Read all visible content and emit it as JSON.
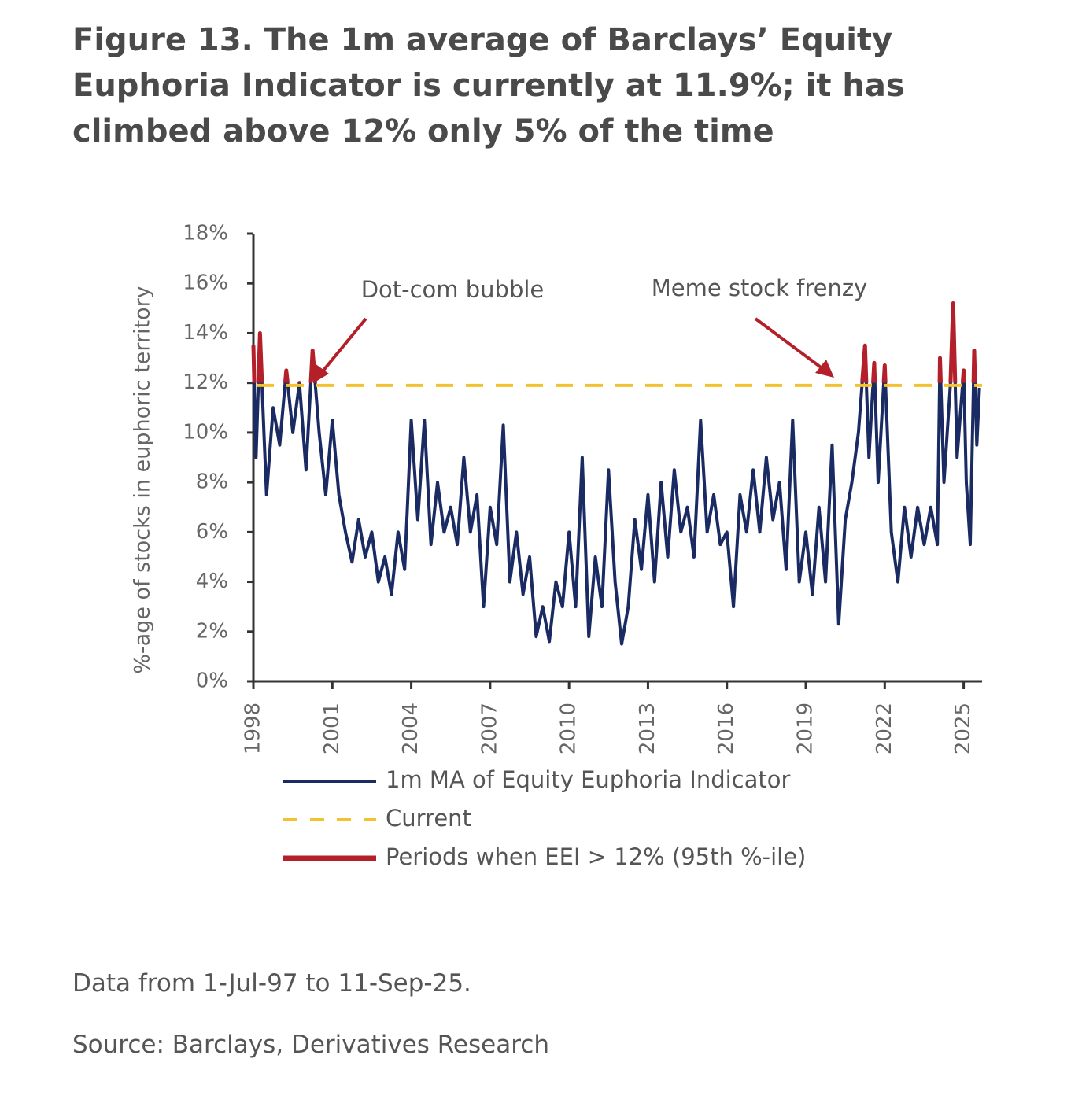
{
  "chart_data": {
    "type": "line",
    "title": "Figure 13. The 1m average of Barclays’ Equity Euphoria Indicator is currently at 11.9%; it has climbed above 12% only 5% of the time",
    "ylabel": "%-age of stocks in euphoric territory",
    "notes": [
      "Data from 1-Jul-97 to 11-Sep-25.",
      "Source: Barclays, Derivatives Research"
    ],
    "annotations": [
      "Dot-com bubble",
      "Meme stock frenzy"
    ],
    "xlim": [
      1998,
      2025.7
    ],
    "xticks": [
      1998,
      2001,
      2004,
      2007,
      2010,
      2013,
      2016,
      2019,
      2022,
      2025
    ],
    "ylim": [
      0,
      18
    ],
    "yticks": [
      {
        "value": 0,
        "label": "0%"
      },
      {
        "value": 2,
        "label": "2%"
      },
      {
        "value": 4,
        "label": "4%"
      },
      {
        "value": 6,
        "label": "6%"
      },
      {
        "value": 8,
        "label": "8%"
      },
      {
        "value": 10,
        "label": "10%"
      },
      {
        "value": 12,
        "label": "12%"
      },
      {
        "value": 14,
        "label": "14%"
      },
      {
        "value": 16,
        "label": "16%"
      },
      {
        "value": 18,
        "label": "18%"
      }
    ],
    "x": [
      1998.0,
      1998.1,
      1998.25,
      1998.4,
      1998.5,
      1998.75,
      1999.0,
      1999.25,
      1999.5,
      1999.75,
      2000.0,
      2000.25,
      2000.5,
      2000.75,
      2001.0,
      2001.25,
      2001.5,
      2001.75,
      2002.0,
      2002.25,
      2002.5,
      2002.75,
      2003.0,
      2003.25,
      2003.5,
      2003.75,
      2004.0,
      2004.25,
      2004.5,
      2004.75,
      2005.0,
      2005.25,
      2005.5,
      2005.75,
      2006.0,
      2006.25,
      2006.5,
      2006.75,
      2007.0,
      2007.25,
      2007.5,
      2007.75,
      2008.0,
      2008.25,
      2008.5,
      2008.75,
      2009.0,
      2009.25,
      2009.5,
      2009.75,
      2010.0,
      2010.25,
      2010.5,
      2010.75,
      2011.0,
      2011.25,
      2011.5,
      2011.75,
      2012.0,
      2012.25,
      2012.5,
      2012.75,
      2013.0,
      2013.25,
      2013.5,
      2013.75,
      2014.0,
      2014.25,
      2014.5,
      2014.75,
      2015.0,
      2015.25,
      2015.5,
      2015.75,
      2016.0,
      2016.25,
      2016.5,
      2016.75,
      2017.0,
      2017.25,
      2017.5,
      2017.75,
      2018.0,
      2018.25,
      2018.5,
      2018.75,
      2019.0,
      2019.25,
      2019.5,
      2019.75,
      2020.0,
      2020.25,
      2020.5,
      2020.75,
      2021.0,
      2021.25,
      2021.4,
      2021.6,
      2021.75,
      2022.0,
      2022.25,
      2022.5,
      2022.75,
      2023.0,
      2023.25,
      2023.5,
      2023.75,
      2024.0,
      2024.1,
      2024.25,
      2024.5,
      2024.6,
      2024.75,
      2025.0,
      2025.1,
      2025.25,
      2025.4,
      2025.5,
      2025.6
    ],
    "series": [
      {
        "name": "1m MA of Equity Euphoria Indicator",
        "color": "#1a2a63",
        "values": [
          13.5,
          9,
          14,
          10,
          7.5,
          11,
          9.5,
          12.5,
          10,
          12,
          8.5,
          13.3,
          10,
          7.5,
          10.5,
          7.5,
          6,
          4.8,
          6.5,
          5,
          6,
          4,
          5,
          3.5,
          6,
          4.5,
          10.5,
          6.5,
          10.5,
          5.5,
          8,
          6,
          7,
          5.5,
          9,
          6,
          7.5,
          3,
          7,
          5.5,
          10.3,
          4,
          6,
          3.5,
          5,
          1.8,
          3,
          1.6,
          4,
          3,
          6,
          3,
          9,
          1.8,
          5,
          3,
          8.5,
          4,
          1.5,
          3,
          6.5,
          4.5,
          7.5,
          4,
          8,
          5,
          8.5,
          6,
          7,
          5,
          10.5,
          6,
          7.5,
          5.5,
          6,
          3,
          7.5,
          6,
          8.5,
          6,
          9,
          6.5,
          8,
          4.5,
          10.5,
          4,
          6,
          3.5,
          7,
          4,
          9.5,
          2.3,
          6.5,
          8,
          10,
          13.5,
          9,
          12.8,
          8,
          12.7,
          6,
          4,
          7,
          5,
          7,
          5.5,
          7,
          5.5,
          13,
          8,
          12,
          15.2,
          9,
          12.5,
          8,
          5.5,
          13.3,
          9.5,
          11.8
        ]
      },
      {
        "name": "Current",
        "color": "#f2c230",
        "value": 11.9,
        "dashed": true
      },
      {
        "name": "Periods when EEI > 12% (95th %-ile)",
        "color": "#b3202a",
        "threshold": 12
      }
    ]
  }
}
